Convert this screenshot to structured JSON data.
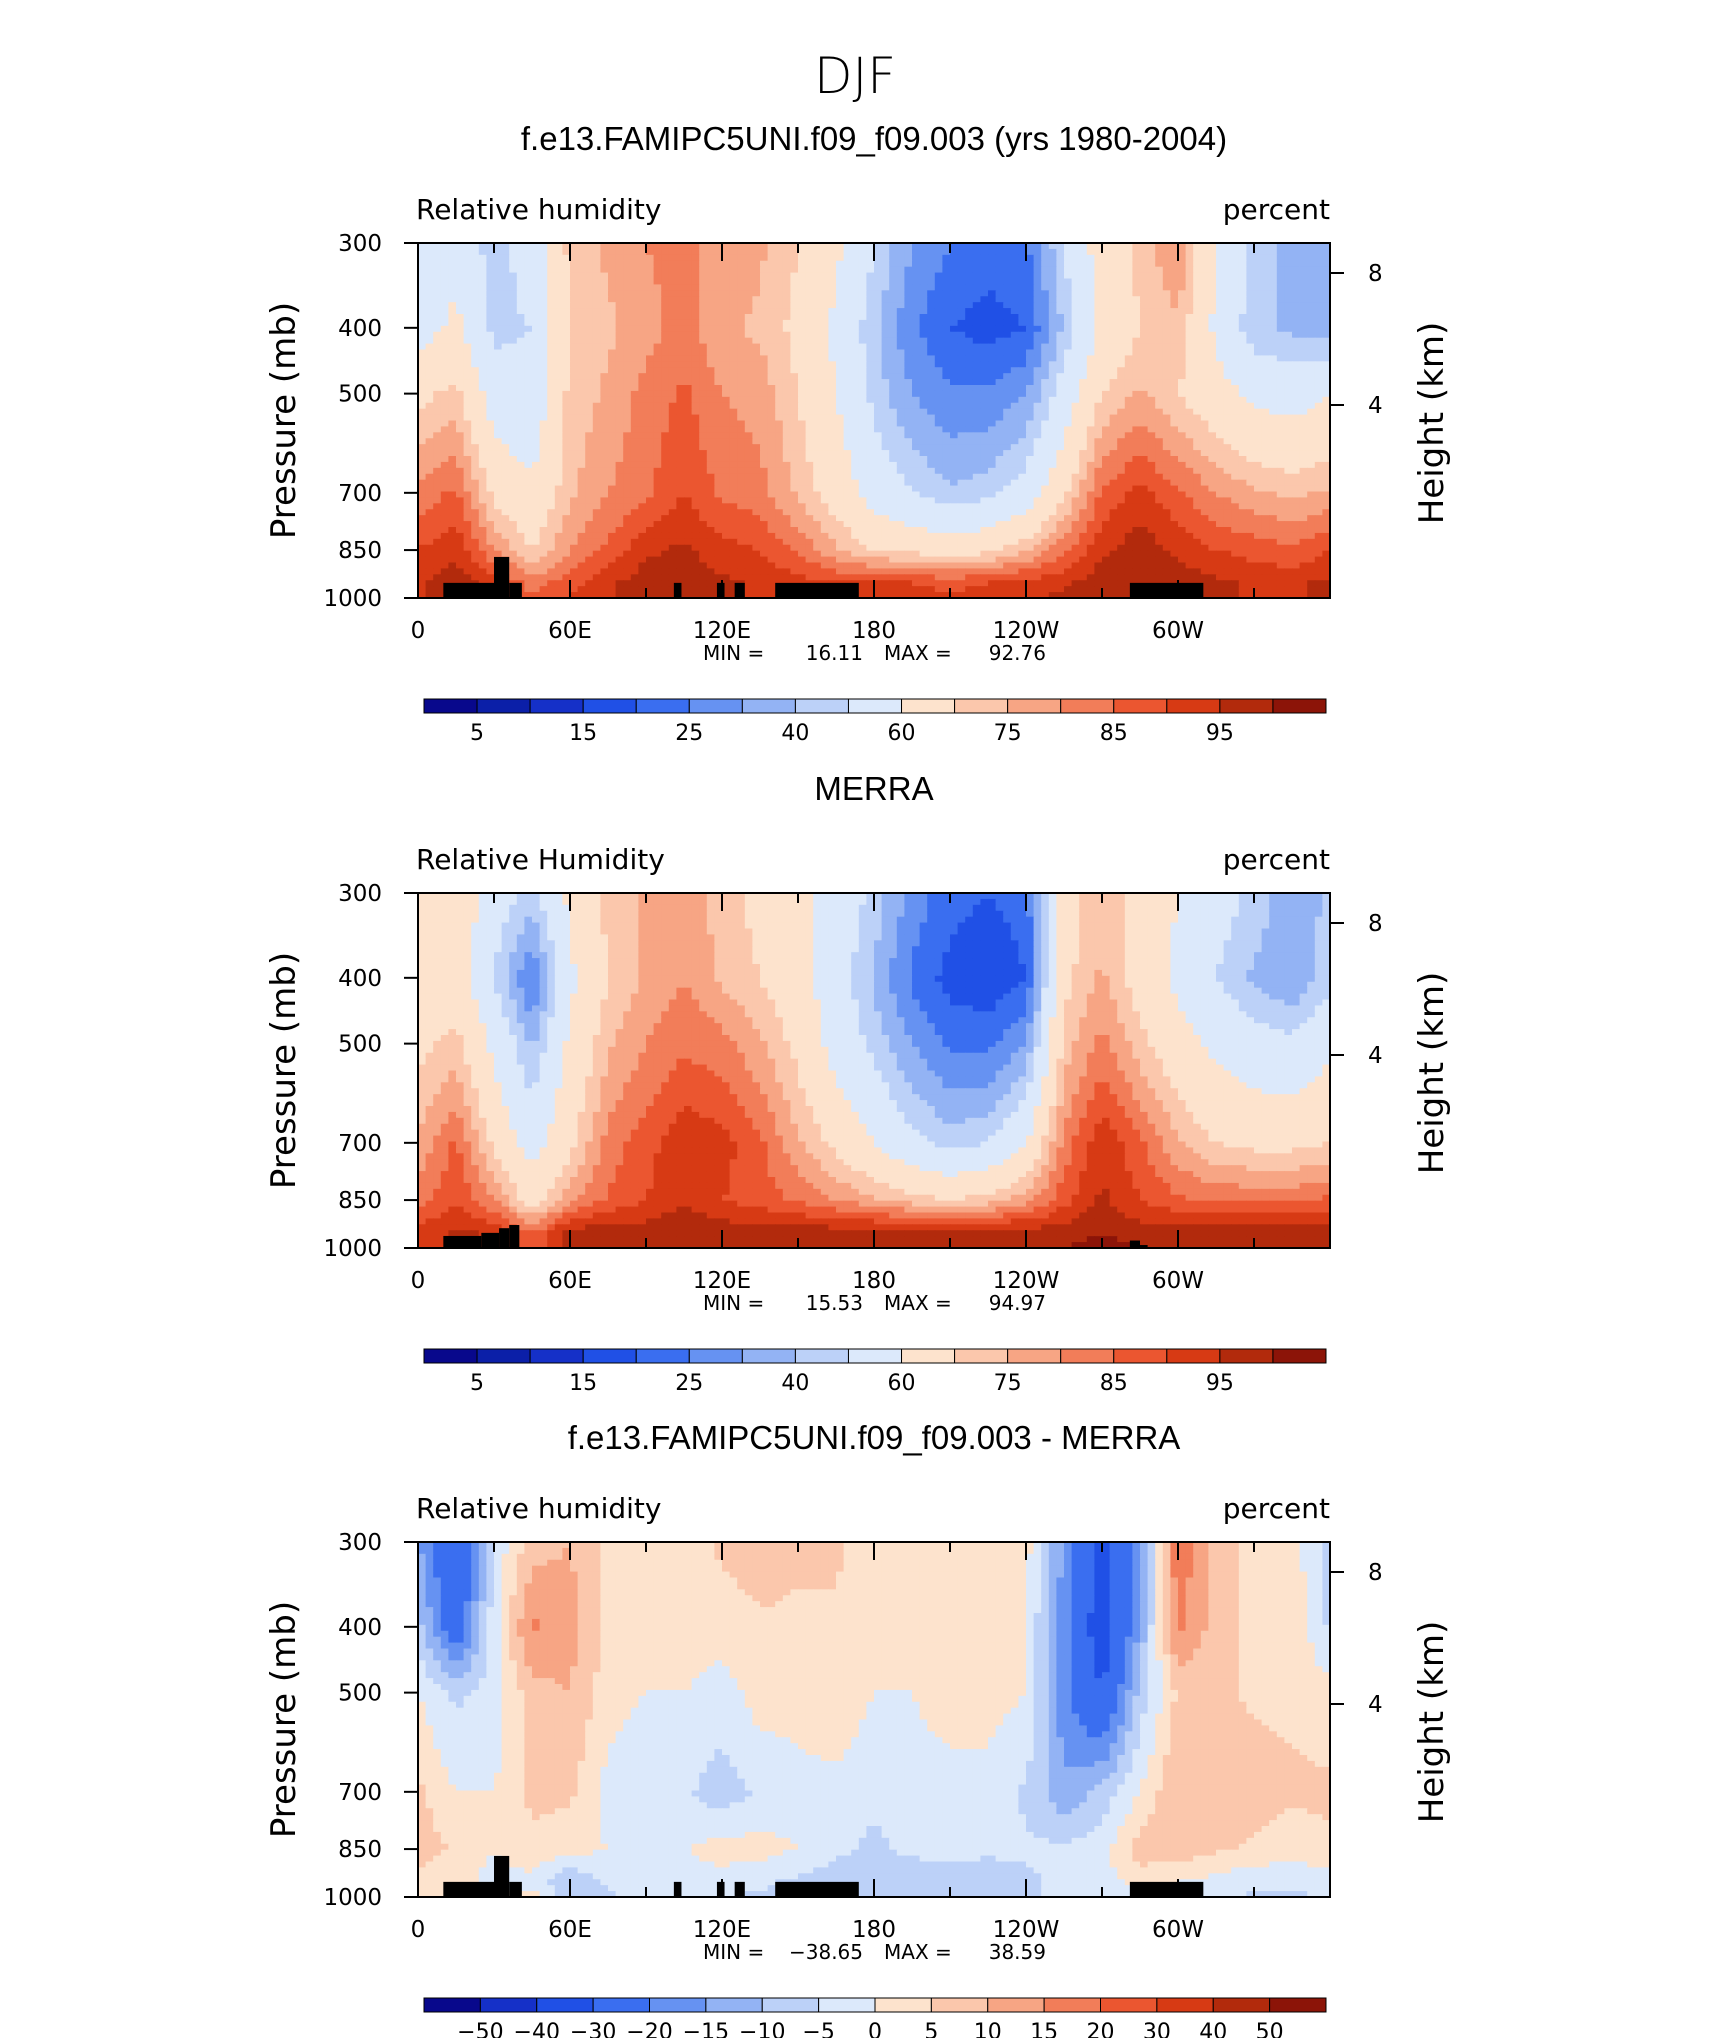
{
  "figure_title": "DJF",
  "colors": {
    "levels_palette": [
      "#08088c",
      "#0b1fa8",
      "#1530c8",
      "#2050e6",
      "#3a6ef0",
      "#6692f2",
      "#93b3f4",
      "#bcd1f8",
      "#dce9fb",
      "#fde3cd",
      "#fbc7ac",
      "#f7a584",
      "#f27d59",
      "#eb5630",
      "#d73a14",
      "#b22a0c",
      "#8c1408"
    ]
  },
  "chart_data": [
    {
      "type": "heatmap",
      "panel_id": "model",
      "title": "f.e13.FAMIPC5UNI.f09_f09.003 (yrs 1980-2004)",
      "left_label": "Relative humidity",
      "right_label": "percent",
      "ylabel": "Pressure (mb)",
      "y2label": "Height (km)",
      "x_ticks": [
        "0",
        "60E",
        "120E",
        "180",
        "120W",
        "60W"
      ],
      "y_ticks": [
        "300",
        "400",
        "500",
        "700",
        "850",
        "1000"
      ],
      "y2_ticks": [
        "8",
        "4"
      ],
      "ylim": [
        1000,
        300
      ],
      "min": "16.11",
      "max": "92.76",
      "min_label": "MIN =",
      "max_label": "MAX =",
      "colorbar_labels": [
        "5",
        "15",
        "25",
        "40",
        "60",
        "75",
        "85",
        "95"
      ],
      "grid_lon": [
        0,
        15,
        30,
        45,
        60,
        75,
        90,
        105,
        120,
        135,
        150,
        165,
        180,
        195,
        210,
        225,
        240,
        255,
        270,
        285,
        300,
        315,
        330,
        345,
        360
      ],
      "grid_p": [
        300,
        400,
        500,
        700,
        850,
        950,
        1000
      ],
      "values": [
        [
          42,
          48,
          36,
          45,
          62,
          66,
          70,
          72,
          68,
          66,
          60,
          52,
          40,
          30,
          25,
          22,
          24,
          40,
          55,
          62,
          70,
          50,
          38,
          32,
          30
        ],
        [
          46,
          52,
          38,
          40,
          60,
          64,
          68,
          72,
          66,
          64,
          58,
          48,
          36,
          26,
          20,
          18,
          20,
          36,
          52,
          60,
          64,
          48,
          36,
          34,
          32
        ],
        [
          58,
          62,
          45,
          42,
          62,
          66,
          72,
          76,
          70,
          68,
          60,
          50,
          38,
          30,
          26,
          26,
          30,
          44,
          60,
          66,
          60,
          54,
          48,
          46,
          50
        ],
        [
          72,
          76,
          58,
          52,
          64,
          70,
          74,
          80,
          74,
          72,
          64,
          56,
          46,
          40,
          36,
          38,
          44,
          58,
          76,
          82,
          76,
          70,
          66,
          64,
          66
        ],
        [
          80,
          84,
          70,
          60,
          70,
          76,
          84,
          86,
          82,
          80,
          74,
          66,
          60,
          58,
          56,
          58,
          64,
          74,
          84,
          88,
          84,
          80,
          78,
          76,
          80
        ],
        [
          84,
          88,
          82,
          72,
          78,
          84,
          88,
          88,
          86,
          84,
          82,
          80,
          80,
          80,
          78,
          80,
          82,
          84,
          88,
          90,
          88,
          86,
          84,
          84,
          86
        ],
        [
          84,
          88,
          84,
          76,
          80,
          84,
          88,
          88,
          86,
          84,
          82,
          82,
          82,
          82,
          82,
          82,
          84,
          86,
          88,
          90,
          88,
          86,
          84,
          84,
          86
        ]
      ]
    },
    {
      "type": "heatmap",
      "panel_id": "obs",
      "title": "MERRA",
      "left_label": "Relative Humidity",
      "right_label": "percent",
      "ylabel": "Pressure (mb)",
      "y2label": "Height (km)",
      "x_ticks": [
        "0",
        "60E",
        "120E",
        "180",
        "120W",
        "60W"
      ],
      "y_ticks": [
        "300",
        "400",
        "500",
        "700",
        "850",
        "1000"
      ],
      "y2_ticks": [
        "8",
        "4"
      ],
      "ylim": [
        1000,
        300
      ],
      "min": "15.53",
      "max": "94.97",
      "min_label": "MIN =",
      "max_label": "MAX =",
      "colorbar_labels": [
        "5",
        "15",
        "25",
        "40",
        "60",
        "75",
        "85",
        "95"
      ],
      "grid_lon": [
        0,
        15,
        30,
        45,
        60,
        75,
        90,
        105,
        120,
        135,
        150,
        165,
        180,
        195,
        210,
        225,
        240,
        255,
        270,
        285,
        300,
        315,
        330,
        345,
        360
      ],
      "grid_p": [
        300,
        400,
        500,
        700,
        850,
        950,
        1000
      ],
      "values": [
        [
          56,
          58,
          44,
          38,
          52,
          62,
          66,
          70,
          62,
          58,
          54,
          46,
          38,
          28,
          22,
          20,
          22,
          56,
          64,
          56,
          50,
          44,
          38,
          32,
          36
        ],
        [
          54,
          56,
          40,
          24,
          48,
          60,
          66,
          70,
          64,
          60,
          54,
          44,
          34,
          24,
          18,
          16,
          20,
          58,
          66,
          56,
          48,
          40,
          34,
          30,
          38
        ],
        [
          58,
          62,
          48,
          34,
          52,
          64,
          70,
          74,
          72,
          66,
          58,
          46,
          38,
          30,
          24,
          24,
          30,
          62,
          72,
          62,
          54,
          48,
          44,
          42,
          48
        ],
        [
          66,
          76,
          58,
          46,
          58,
          72,
          78,
          84,
          82,
          76,
          66,
          58,
          50,
          42,
          38,
          40,
          50,
          72,
          84,
          76,
          66,
          60,
          58,
          58,
          60
        ],
        [
          72,
          80,
          70,
          56,
          68,
          76,
          80,
          84,
          80,
          78,
          74,
          70,
          66,
          62,
          60,
          62,
          68,
          78,
          86,
          80,
          76,
          74,
          74,
          74,
          76
        ],
        [
          82,
          86,
          84,
          74,
          88,
          88,
          88,
          90,
          88,
          88,
          88,
          88,
          88,
          88,
          88,
          88,
          88,
          88,
          90,
          88,
          88,
          88,
          88,
          88,
          88
        ],
        [
          82,
          86,
          84,
          74,
          88,
          90,
          90,
          90,
          90,
          90,
          90,
          90,
          90,
          90,
          90,
          90,
          90,
          90,
          92,
          90,
          90,
          90,
          90,
          90,
          90
        ]
      ]
    },
    {
      "type": "heatmap",
      "panel_id": "diff",
      "title": "f.e13.FAMIPC5UNI.f09_f09.003 - MERRA",
      "left_label": "Relative humidity",
      "right_label": "percent",
      "ylabel": "Pressure (mb)",
      "y2label": "Height (km)",
      "x_ticks": [
        "0",
        "60E",
        "120E",
        "180",
        "120W",
        "60W"
      ],
      "y_ticks": [
        "300",
        "400",
        "500",
        "700",
        "850",
        "1000"
      ],
      "y2_ticks": [
        "8",
        "4"
      ],
      "ylim": [
        1000,
        300
      ],
      "min": "−38.65",
      "max": "38.59",
      "min_label": "MIN =",
      "max_label": "MAX =",
      "colorbar_labels": [
        "−50",
        "−40",
        "−30",
        "−20",
        "−15",
        "−10",
        "−5",
        "0",
        "5",
        "10",
        "15",
        "20",
        "30",
        "40",
        "50"
      ],
      "grid_lon": [
        0,
        15,
        30,
        45,
        60,
        75,
        90,
        105,
        120,
        135,
        150,
        165,
        180,
        195,
        210,
        225,
        240,
        255,
        270,
        285,
        300,
        315,
        330,
        345,
        360
      ],
      "grid_p": [
        300,
        400,
        500,
        700,
        850,
        950,
        1000
      ],
      "values": [
        [
          -14,
          -30,
          -4,
          8,
          10,
          4,
          4,
          2,
          6,
          8,
          6,
          6,
          2,
          2,
          3,
          2,
          2,
          -16,
          -32,
          -16,
          20,
          6,
          4,
          2,
          -6
        ],
        [
          -8,
          -26,
          -2,
          16,
          12,
          4,
          2,
          2,
          2,
          4,
          4,
          4,
          2,
          2,
          2,
          2,
          0,
          -18,
          -36,
          -14,
          16,
          8,
          2,
          4,
          -6
        ],
        [
          0,
          -6,
          -3,
          8,
          10,
          2,
          0,
          0,
          -2,
          2,
          2,
          4,
          0,
          0,
          2,
          2,
          0,
          -18,
          -30,
          -8,
          6,
          6,
          4,
          4,
          2
        ],
        [
          6,
          0,
          0,
          6,
          6,
          -2,
          -4,
          -4,
          -8,
          -4,
          -2,
          -2,
          -4,
          -2,
          -2,
          -2,
          -6,
          -14,
          -8,
          0,
          10,
          10,
          8,
          6,
          6
        ],
        [
          8,
          4,
          0,
          4,
          2,
          0,
          0,
          0,
          2,
          2,
          0,
          -4,
          -6,
          -4,
          -4,
          -4,
          -4,
          -4,
          -2,
          8,
          8,
          6,
          4,
          2,
          4
        ],
        [
          2,
          2,
          -2,
          -2,
          -10,
          -4,
          -2,
          -2,
          -2,
          -4,
          -6,
          -8,
          -8,
          -8,
          -6,
          -8,
          -6,
          -4,
          -2,
          2,
          0,
          -2,
          -4,
          -4,
          -2
        ],
        [
          2,
          2,
          0,
          2,
          -8,
          -6,
          -2,
          -2,
          -4,
          -6,
          -6,
          -8,
          -8,
          -8,
          -8,
          -8,
          -6,
          -4,
          -4,
          0,
          -2,
          -2,
          -6,
          -6,
          -4
        ]
      ]
    }
  ]
}
